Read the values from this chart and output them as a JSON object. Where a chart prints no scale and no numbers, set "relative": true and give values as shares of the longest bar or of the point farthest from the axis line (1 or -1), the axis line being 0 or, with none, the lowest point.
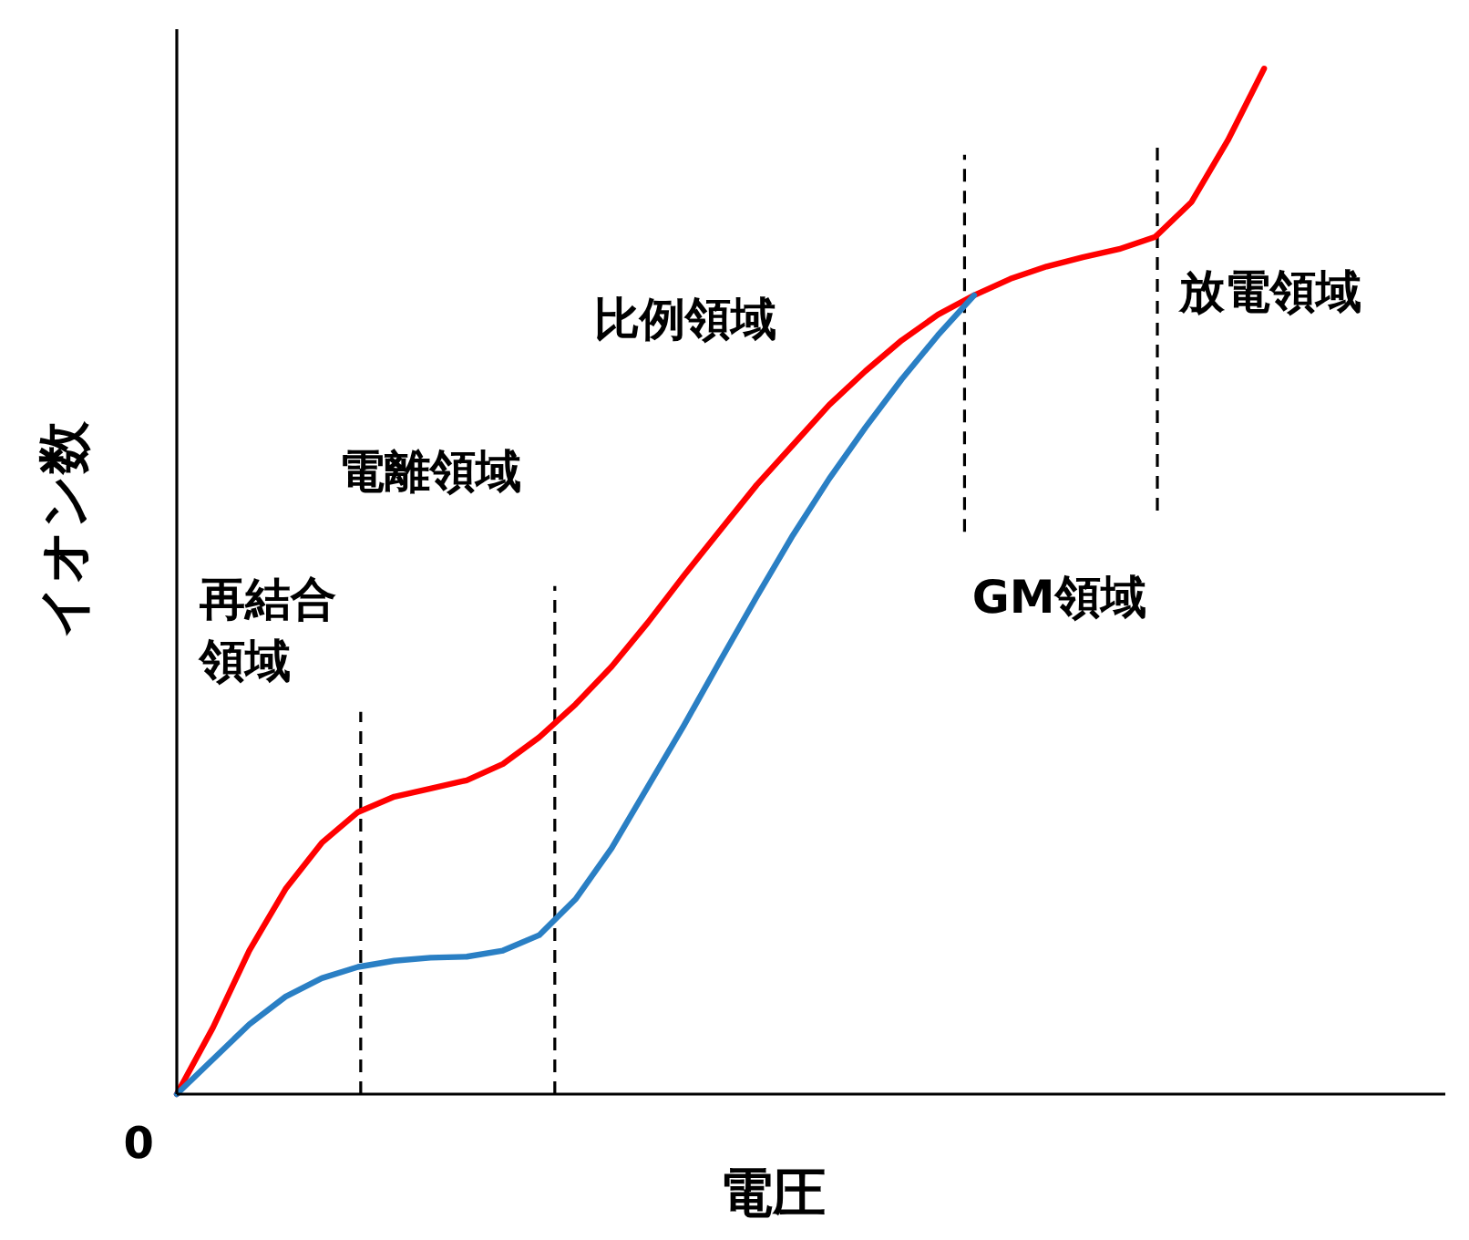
{
  "chart_data": {
    "type": "line",
    "relative": true,
    "xlabel": "電圧",
    "ylabel": "イオン数",
    "marker": "none",
    "line_style": "solid",
    "annotations": [
      "0",
      "再結合領域",
      "電離領域",
      "比例領域",
      "GM領域",
      "放電領域"
    ],
    "categories": [
      null,
      null,
      null,
      null,
      null,
      null,
      null,
      null,
      null,
      null,
      null,
      null,
      null,
      null,
      null,
      null,
      null,
      null,
      null,
      null,
      null,
      null,
      null,
      null,
      null,
      null,
      null,
      null,
      null,
      null,
      null,
      null,
      null,
      null,
      null,
      null
    ],
    "series": [
      {
        "color": "#ff0000",
        "values": [
          0,
          0.065,
          0.14,
          0.2,
          0.245,
          0.275,
          0.29,
          0.298,
          0.306,
          0.322,
          0.348,
          0.38,
          0.417,
          0.46,
          0.506,
          0.55,
          0.594,
          0.633,
          0.672,
          0.705,
          0.735,
          0.76,
          0.779,
          0.795,
          0.807,
          0.816,
          0.824,
          0.836,
          0.87,
          0.93,
          1,
          null,
          null,
          null,
          null,
          null
        ]
      },
      {
        "color": "#2a7fc4",
        "values": [
          0,
          0.034,
          0.068,
          0.095,
          0.113,
          0.124,
          0.13,
          0.133,
          0.134,
          0.14,
          0.155,
          0.19,
          0.24,
          0.3,
          0.36,
          0.423,
          0.485,
          0.545,
          0.6,
          0.65,
          0.697,
          0.74,
          0.779,
          null,
          null,
          null,
          null,
          null,
          null,
          null,
          null,
          null,
          null,
          null,
          null,
          null
        ]
      }
    ]
  }
}
